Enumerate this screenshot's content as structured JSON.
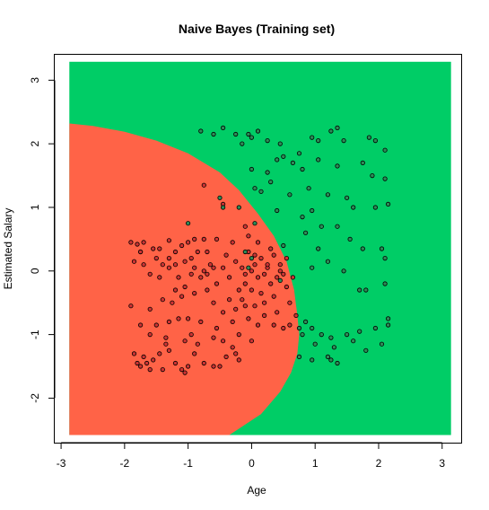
{
  "chart_data": {
    "type": "scatter",
    "title": "Naive Bayes (Training set)",
    "xlabel": "Age",
    "ylabel": "Estimated Salary",
    "xlim": [
      -3.1,
      3.3
    ],
    "ylim": [
      -2.7,
      3.4
    ],
    "xticks": [
      "-3",
      "-2",
      "-1",
      "0",
      "1",
      "2",
      "3"
    ],
    "yticks": [
      "-2",
      "-1",
      "0",
      "1",
      "2",
      "3"
    ],
    "region_colors": {
      "class_0": "#ff6347",
      "class_1": "#00cd66"
    },
    "point_colors": {
      "class_0": "#cd3333",
      "class_1": "#2e8b57"
    },
    "grid_extent": {
      "x": [
        -2.87,
        3.14
      ],
      "y": [
        -2.58,
        3.29
      ]
    },
    "boundary": [
      [
        -2.87,
        2.32
      ],
      [
        -2.5,
        2.28
      ],
      [
        -2.0,
        2.19
      ],
      [
        -1.5,
        2.05
      ],
      [
        -1.0,
        1.85
      ],
      [
        -0.5,
        1.55
      ],
      [
        -0.2,
        1.27
      ],
      [
        0.1,
        0.9
      ],
      [
        0.35,
        0.55
      ],
      [
        0.55,
        0.15
      ],
      [
        0.67,
        -0.3
      ],
      [
        0.72,
        -0.7
      ],
      [
        0.75,
        -1.0
      ],
      [
        0.72,
        -1.3
      ],
      [
        0.62,
        -1.6
      ],
      [
        0.45,
        -1.9
      ],
      [
        0.15,
        -2.25
      ],
      [
        -0.35,
        -2.58
      ]
    ],
    "series": [
      {
        "label": "0",
        "points": [
          [
            -1.9,
            0.45
          ],
          [
            -1.8,
            0.42
          ],
          [
            -1.75,
            0.3
          ],
          [
            -1.7,
            0.45
          ],
          [
            -1.85,
            0.15
          ],
          [
            -1.7,
            0.1
          ],
          [
            -1.55,
            0.35
          ],
          [
            -1.5,
            0.2
          ],
          [
            -1.4,
            0.1
          ],
          [
            -1.6,
            -0.05
          ],
          [
            -1.45,
            -0.1
          ],
          [
            -1.3,
            0.48
          ],
          [
            -1.2,
            0.3
          ],
          [
            -1.1,
            0.4
          ],
          [
            -1.0,
            0.45
          ],
          [
            -0.9,
            0.5
          ],
          [
            -1.05,
            0.15
          ],
          [
            -0.95,
            0.2
          ],
          [
            -0.85,
            0.3
          ],
          [
            -0.75,
            0.5
          ],
          [
            -0.7,
            0.3
          ],
          [
            -0.65,
            0.1
          ],
          [
            -1.3,
            0.05
          ],
          [
            -1.15,
            -0.1
          ],
          [
            -0.95,
            -0.05
          ],
          [
            -0.8,
            -0.1
          ],
          [
            -0.7,
            -0.05
          ],
          [
            -1.2,
            -0.3
          ],
          [
            -1.05,
            -0.25
          ],
          [
            -0.9,
            -0.35
          ],
          [
            -0.7,
            -0.3
          ],
          [
            -1.4,
            -0.45
          ],
          [
            -1.25,
            -0.5
          ],
          [
            -1.1,
            -0.4
          ],
          [
            -1.9,
            -0.55
          ],
          [
            -1.6,
            -0.6
          ],
          [
            -1.3,
            -0.8
          ],
          [
            -1.0,
            -0.75
          ],
          [
            -0.8,
            -0.8
          ],
          [
            -1.5,
            -0.85
          ],
          [
            -1.75,
            -0.85
          ],
          [
            -1.6,
            -1.0
          ],
          [
            -1.35,
            -1.05
          ],
          [
            -1.05,
            -1.1
          ],
          [
            -0.85,
            -1.15
          ],
          [
            -0.6,
            -1.05
          ],
          [
            -1.85,
            -1.3
          ],
          [
            -1.8,
            -1.45
          ],
          [
            -1.7,
            -1.35
          ],
          [
            -1.55,
            -1.4
          ],
          [
            -1.45,
            -1.3
          ],
          [
            -1.3,
            -1.25
          ],
          [
            -1.2,
            -1.45
          ],
          [
            -1.1,
            -1.55
          ],
          [
            -1.0,
            -1.5
          ],
          [
            -0.9,
            -1.3
          ],
          [
            -0.75,
            -1.45
          ],
          [
            -1.6,
            -1.55
          ],
          [
            -1.4,
            -1.55
          ],
          [
            -1.05,
            -1.6
          ],
          [
            -0.6,
            -1.5
          ],
          [
            -0.5,
            -1.5
          ],
          [
            -1.75,
            -1.5
          ],
          [
            -0.55,
            -0.2
          ],
          [
            -0.45,
            0.05
          ],
          [
            -0.4,
            0.25
          ],
          [
            -0.3,
            0.45
          ],
          [
            -0.55,
            0.5
          ],
          [
            -0.35,
            -0.1
          ],
          [
            -0.2,
            -0.3
          ],
          [
            -0.1,
            -0.05
          ],
          [
            0.05,
            0.1
          ],
          [
            0.15,
            0.2
          ],
          [
            -0.05,
            0.3
          ],
          [
            0.1,
            -0.1
          ],
          [
            0.25,
            0.05
          ],
          [
            0.35,
            0.25
          ],
          [
            0.45,
            0.1
          ],
          [
            0.5,
            -0.05
          ],
          [
            0.3,
            -0.2
          ],
          [
            0.15,
            -0.35
          ],
          [
            0.35,
            -0.4
          ],
          [
            0.2,
            -0.5
          ],
          [
            -0.15,
            -0.45
          ],
          [
            -0.25,
            -0.6
          ],
          [
            0.05,
            -0.55
          ],
          [
            0.4,
            -0.65
          ],
          [
            0.6,
            -0.5
          ],
          [
            -0.05,
            -0.75
          ],
          [
            -0.3,
            -0.8
          ],
          [
            -0.45,
            -0.65
          ],
          [
            0.1,
            -0.85
          ],
          [
            0.35,
            -0.85
          ],
          [
            0.5,
            -0.9
          ],
          [
            0.7,
            -0.7
          ],
          [
            -0.2,
            -1.0
          ],
          [
            -0.3,
            -1.2
          ],
          [
            -0.45,
            -1.1
          ],
          [
            -0.2,
            -1.4
          ],
          [
            -0.25,
            -1.3
          ],
          [
            -0.4,
            -1.35
          ],
          [
            -0.55,
            -0.9
          ],
          [
            0.0,
            -1.1
          ],
          [
            -0.1,
            -0.2
          ],
          [
            0.05,
            0.25
          ],
          [
            -0.25,
            0.15
          ],
          [
            0.25,
            0.1
          ],
          [
            0.55,
            0.2
          ],
          [
            0.65,
            -0.1
          ],
          [
            0.4,
            -0.1
          ],
          [
            0.0,
            -0.3
          ],
          [
            -0.1,
            -0.55
          ],
          [
            0.2,
            -0.7
          ],
          [
            -0.35,
            -0.45
          ],
          [
            -0.6,
            -0.5
          ],
          [
            -1.3,
            0.2
          ],
          [
            -1.45,
            0.35
          ],
          [
            -1.75,
            0.3
          ],
          [
            -1.2,
            0.1
          ],
          [
            -0.9,
            0.05
          ],
          [
            -1.15,
            -0.75
          ],
          [
            -0.95,
            -1.0
          ],
          [
            -1.35,
            -1.15
          ],
          [
            -1.65,
            -1.45
          ],
          [
            -0.1,
            0.7
          ],
          [
            -0.05,
            0.55
          ],
          [
            -0.45,
            1.05
          ],
          [
            -0.75,
            1.35
          ],
          [
            0.55,
            -0.25
          ],
          [
            0.6,
            -0.85
          ],
          [
            0.45,
            0.0
          ],
          [
            0.3,
            0.35
          ],
          [
            0.0,
            0.0
          ],
          [
            -0.15,
            0.05
          ],
          [
            0.2,
            -0.05
          ],
          [
            0.1,
            0.45
          ],
          [
            -0.6,
            0.05
          ],
          [
            -0.75,
            0.0
          ]
        ]
      },
      {
        "label": "1",
        "points": [
          [
            -0.8,
            2.2
          ],
          [
            -0.6,
            2.15
          ],
          [
            -0.45,
            2.25
          ],
          [
            -0.25,
            2.15
          ],
          [
            -0.15,
            2.0
          ],
          [
            0.0,
            2.1
          ],
          [
            0.1,
            2.2
          ],
          [
            0.25,
            2.05
          ],
          [
            -0.05,
            2.15
          ],
          [
            0.45,
            2.0
          ],
          [
            0.5,
            1.8
          ],
          [
            0.75,
            1.85
          ],
          [
            0.95,
            2.1
          ],
          [
            1.05,
            2.05
          ],
          [
            1.25,
            2.2
          ],
          [
            1.35,
            2.25
          ],
          [
            1.45,
            2.05
          ],
          [
            1.85,
            2.1
          ],
          [
            1.95,
            2.05
          ],
          [
            2.1,
            1.9
          ],
          [
            1.05,
            1.75
          ],
          [
            0.8,
            1.6
          ],
          [
            1.35,
            1.65
          ],
          [
            1.75,
            1.7
          ],
          [
            1.9,
            1.5
          ],
          [
            2.1,
            1.45
          ],
          [
            0.25,
            1.55
          ],
          [
            0.0,
            1.6
          ],
          [
            0.05,
            1.3
          ],
          [
            0.3,
            1.4
          ],
          [
            0.6,
            1.2
          ],
          [
            0.9,
            1.3
          ],
          [
            1.2,
            1.2
          ],
          [
            1.5,
            1.15
          ],
          [
            1.6,
            1.0
          ],
          [
            1.95,
            1.0
          ],
          [
            2.15,
            1.05
          ],
          [
            0.4,
            0.95
          ],
          [
            0.8,
            0.85
          ],
          [
            0.85,
            0.6
          ],
          [
            1.1,
            0.7
          ],
          [
            1.35,
            0.7
          ],
          [
            1.55,
            0.5
          ],
          [
            1.75,
            0.35
          ],
          [
            2.05,
            0.35
          ],
          [
            2.1,
            0.2
          ],
          [
            1.05,
            0.35
          ],
          [
            1.2,
            0.15
          ],
          [
            0.95,
            0.05
          ],
          [
            1.45,
            0.0
          ],
          [
            1.7,
            -0.3
          ],
          [
            1.8,
            -0.3
          ],
          [
            2.1,
            -0.2
          ],
          [
            0.85,
            -0.8
          ],
          [
            0.95,
            -0.9
          ],
          [
            1.1,
            -1.0
          ],
          [
            1.25,
            -1.05
          ],
          [
            1.3,
            -1.2
          ],
          [
            1.5,
            -1.0
          ],
          [
            1.6,
            -1.1
          ],
          [
            1.7,
            -0.95
          ],
          [
            1.95,
            -0.9
          ],
          [
            2.15,
            -0.75
          ],
          [
            2.15,
            -0.85
          ],
          [
            1.8,
            -1.25
          ],
          [
            2.05,
            -1.15
          ],
          [
            1.2,
            -1.35
          ],
          [
            1.35,
            -1.45
          ],
          [
            0.95,
            -1.4
          ],
          [
            0.75,
            -1.35
          ],
          [
            0.8,
            -1.0
          ],
          [
            1.0,
            -1.15
          ],
          [
            1.25,
            -1.4
          ],
          [
            -0.05,
            0.05
          ],
          [
            0.0,
            0.2
          ],
          [
            -0.1,
            0.3
          ],
          [
            -1.0,
            0.75
          ],
          [
            -0.5,
            1.15
          ],
          [
            -0.45,
            1.0
          ],
          [
            -0.2,
            1.0
          ],
          [
            0.15,
            1.25
          ],
          [
            0.4,
            1.75
          ],
          [
            0.65,
            1.7
          ],
          [
            0.95,
            0.95
          ],
          [
            0.5,
            0.4
          ],
          [
            0.45,
            -0.15
          ],
          [
            0.75,
            -0.9
          ],
          [
            0.05,
            0.75
          ]
        ]
      }
    ]
  }
}
